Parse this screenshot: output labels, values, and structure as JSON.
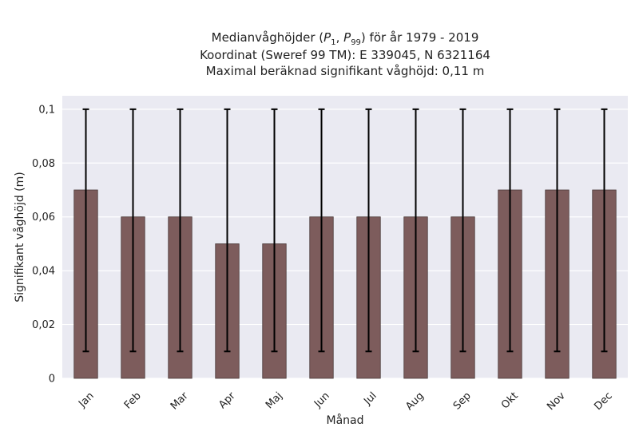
{
  "chart_data": {
    "type": "bar",
    "title_lines": [
      "Medianvåghöjder (P1, P99) för år 1979 - 2019",
      "Koordinat (Sweref 99 TM): E 339045, N 6321164",
      "Maximal beräknad signifikant våghöjd: 0,11 m"
    ],
    "xlabel": "Månad",
    "ylabel": "Signifikant våghöjd (m)",
    "categories": [
      "Jan",
      "Feb",
      "Mar",
      "Apr",
      "Maj",
      "Jun",
      "Jul",
      "Aug",
      "Sep",
      "Okt",
      "Nov",
      "Dec"
    ],
    "values": [
      0.07,
      0.06,
      0.06,
      0.05,
      0.05,
      0.06,
      0.06,
      0.06,
      0.06,
      0.07,
      0.07,
      0.07
    ],
    "p1": [
      0.01,
      0.01,
      0.01,
      0.01,
      0.01,
      0.01,
      0.01,
      0.01,
      0.01,
      0.01,
      0.01,
      0.01
    ],
    "p99": [
      0.1,
      0.1,
      0.1,
      0.1,
      0.1,
      0.1,
      0.1,
      0.1,
      0.1,
      0.1,
      0.1,
      0.1
    ],
    "ylim": [
      0,
      0.105
    ],
    "yticks": [
      0,
      0.02,
      0.04,
      0.06,
      0.08,
      0.1
    ],
    "ytick_labels": [
      "0",
      "0,02",
      "0,04",
      "0,06",
      "0,08",
      "0,1"
    ],
    "grid": true,
    "bar_color": "#7d5c5c",
    "plot_background": "#eaeaf2"
  }
}
